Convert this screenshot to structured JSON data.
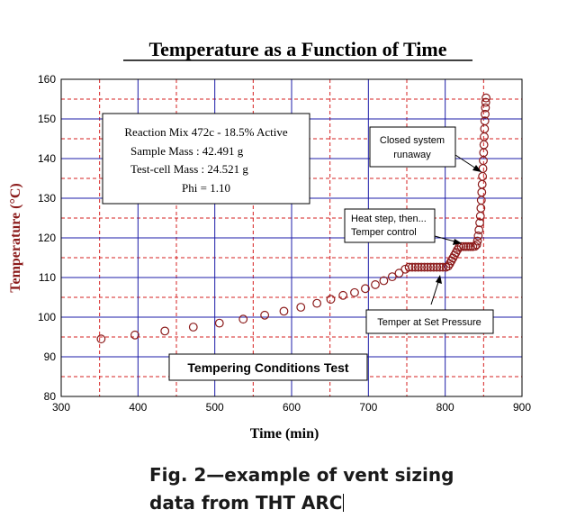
{
  "chart_data": {
    "type": "scatter",
    "title": "Temperature as a Function of Time",
    "xlabel": "Time (min)",
    "ylabel": "Temperature (°C)",
    "xlim": [
      300,
      900
    ],
    "ylim": [
      80,
      160
    ],
    "xticks": [
      300,
      400,
      500,
      600,
      700,
      800,
      900
    ],
    "yticks": [
      80,
      90,
      100,
      110,
      120,
      130,
      140,
      150,
      160
    ],
    "grid": true,
    "marker_color": "#8b1a1a",
    "grid_major_color": "#1c1ca8",
    "grid_minor_color": "#d62020",
    "points": [
      [
        352,
        94.5
      ],
      [
        396,
        95.5
      ],
      [
        435,
        96.5
      ],
      [
        472,
        97.5
      ],
      [
        506,
        98.5
      ],
      [
        537,
        99.5
      ],
      [
        565,
        100.5
      ],
      [
        590,
        101.5
      ],
      [
        612,
        102.5
      ],
      [
        633,
        103.5
      ],
      [
        651,
        104.5
      ],
      [
        667,
        105.5
      ],
      [
        682,
        106.2
      ],
      [
        696,
        107.2
      ],
      [
        709,
        108.2
      ],
      [
        720,
        109.2
      ],
      [
        731,
        110.2
      ],
      [
        740,
        111.1
      ],
      [
        748,
        112.1
      ],
      [
        753,
        112.6
      ],
      [
        757,
        112.6
      ],
      [
        761,
        112.6
      ],
      [
        765,
        112.6
      ],
      [
        769,
        112.6
      ],
      [
        773,
        112.6
      ],
      [
        777,
        112.6
      ],
      [
        781,
        112.6
      ],
      [
        785,
        112.6
      ],
      [
        789,
        112.6
      ],
      [
        793,
        112.6
      ],
      [
        797,
        112.6
      ],
      [
        801,
        112.6
      ],
      [
        804,
        112.9
      ],
      [
        806,
        113.5
      ],
      [
        808,
        114.2
      ],
      [
        810,
        114.9
      ],
      [
        812,
        115.6
      ],
      [
        814,
        116.3
      ],
      [
        816,
        117
      ],
      [
        818,
        117.6
      ],
      [
        821,
        117.8
      ],
      [
        824,
        117.8
      ],
      [
        827,
        117.8
      ],
      [
        830,
        117.8
      ],
      [
        833,
        117.8
      ],
      [
        836,
        117.8
      ],
      [
        839,
        117.9
      ],
      [
        841,
        118.3
      ],
      [
        842,
        119.2
      ],
      [
        843,
        120.5
      ],
      [
        844,
        122
      ],
      [
        845,
        123.8
      ],
      [
        845.8,
        125.5
      ],
      [
        846.5,
        127.5
      ],
      [
        847,
        129.5
      ],
      [
        847.6,
        131.5
      ],
      [
        848.1,
        133.5
      ],
      [
        848.6,
        135.5
      ],
      [
        849.1,
        137.5
      ],
      [
        849.6,
        139.5
      ],
      [
        850,
        141.5
      ],
      [
        850.4,
        143.5
      ],
      [
        850.8,
        145.5
      ],
      [
        851.2,
        147.5
      ],
      [
        851.6,
        149.5
      ],
      [
        852,
        151.2
      ],
      [
        852.4,
        152.8
      ],
      [
        852.8,
        154.2
      ],
      [
        853.2,
        155.3
      ]
    ],
    "annotations": [
      {
        "name": "info-box",
        "lines": [
          "Reaction Mix 472c  - 18.5% Active",
          "Sample Mass : 42.491 g",
          "Test-cell Mass : 24.521 g",
          "Phi = 1.10"
        ]
      },
      {
        "name": "closed-system-runaway",
        "lines": [
          "Closed system",
          "runaway"
        ]
      },
      {
        "name": "heat-step",
        "lines": [
          "Heat step, then...",
          "Temper control"
        ]
      },
      {
        "name": "temper-set-pressure",
        "lines": [
          "Temper at Set Pressure"
        ]
      },
      {
        "name": "test-name",
        "lines": [
          "Tempering Conditions Test"
        ]
      }
    ]
  },
  "caption": {
    "line1": "Fig. 2—example of vent sizing",
    "line2": "data from THT ARC"
  }
}
